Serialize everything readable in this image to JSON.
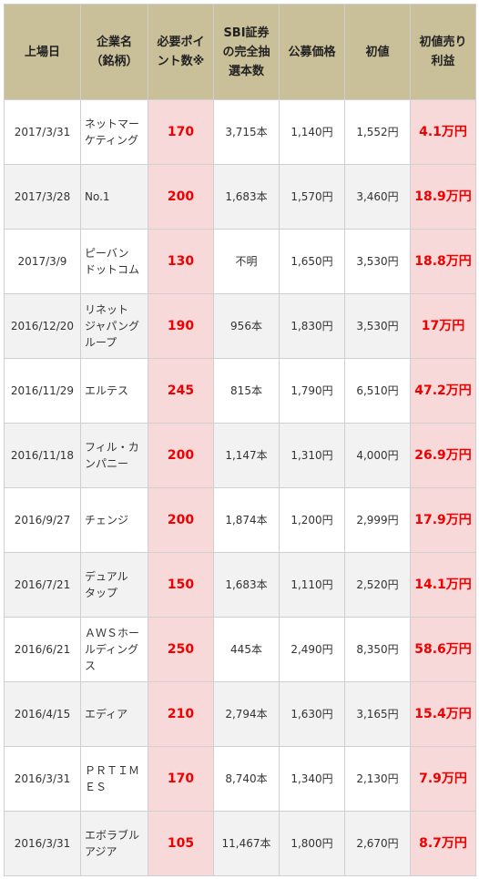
{
  "headers": [
    "上場日",
    "企業名\n（銘柄）",
    "必要ポイ\nント数※",
    "SBI証券\nの完全抽\n選本数",
    "公募価格",
    "初値",
    "初値売り\n利益"
  ],
  "rows": [
    {
      "date": "2017/3/31",
      "name": "ネットマー\nケティング",
      "points": "170",
      "lots": "3,715本",
      "offer": "1,140円",
      "first": "1,552円",
      "profit": "4.1万円"
    },
    {
      "date": "2017/3/28",
      "name": "No.1",
      "points": "200",
      "lots": "1,683本",
      "offer": "1,570円",
      "first": "3,460円",
      "profit": "18.9万円"
    },
    {
      "date": "2017/3/9",
      "name": "ピーバン\nドットコム",
      "points": "130",
      "lots": "不明",
      "offer": "1,650円",
      "first": "3,530円",
      "profit": "18.8万円"
    },
    {
      "date": "2016/12/20",
      "name": "リネット\nジャパング\nループ",
      "points": "190",
      "lots": "956本",
      "offer": "1,830円",
      "first": "3,530円",
      "profit": "17万円"
    },
    {
      "date": "2016/11/29",
      "name": "エルテス",
      "points": "245",
      "lots": "815本",
      "offer": "1,790円",
      "first": "6,510円",
      "profit": "47.2万円"
    },
    {
      "date": "2016/11/18",
      "name": "フィル・カ\nンパニー",
      "points": "200",
      "lots": "1,147本",
      "offer": "1,310円",
      "first": "4,000円",
      "profit": "26.9万円"
    },
    {
      "date": "2016/9/27",
      "name": "チェンジ",
      "points": "200",
      "lots": "1,874本",
      "offer": "1,200円",
      "first": "2,999円",
      "profit": "17.9万円"
    },
    {
      "date": "2016/7/21",
      "name": "デュアル\nタップ",
      "points": "150",
      "lots": "1,683本",
      "offer": "1,110円",
      "first": "2,520円",
      "profit": "14.1万円"
    },
    {
      "date": "2016/6/21",
      "name": "ＡＷＳホー\nルディング\nス",
      "points": "250",
      "lots": "445本",
      "offer": "2,490円",
      "first": "8,350円",
      "profit": "58.6万円"
    },
    {
      "date": "2016/4/15",
      "name": "エディア",
      "points": "210",
      "lots": "2,794本",
      "offer": "1,630円",
      "first": "3,165円",
      "profit": "15.4万円"
    },
    {
      "date": "2016/3/31",
      "name": "ＰＲＴＩＭ\nＥＳ",
      "points": "170",
      "lots": "8,740本",
      "offer": "1,340円",
      "first": "2,130円",
      "profit": "7.9万円"
    },
    {
      "date": "2016/3/31",
      "name": "エボラブル\nアジア",
      "points": "105",
      "lots": "11,467本",
      "offer": "1,800円",
      "first": "2,670円",
      "profit": "8.7万円"
    }
  ]
}
